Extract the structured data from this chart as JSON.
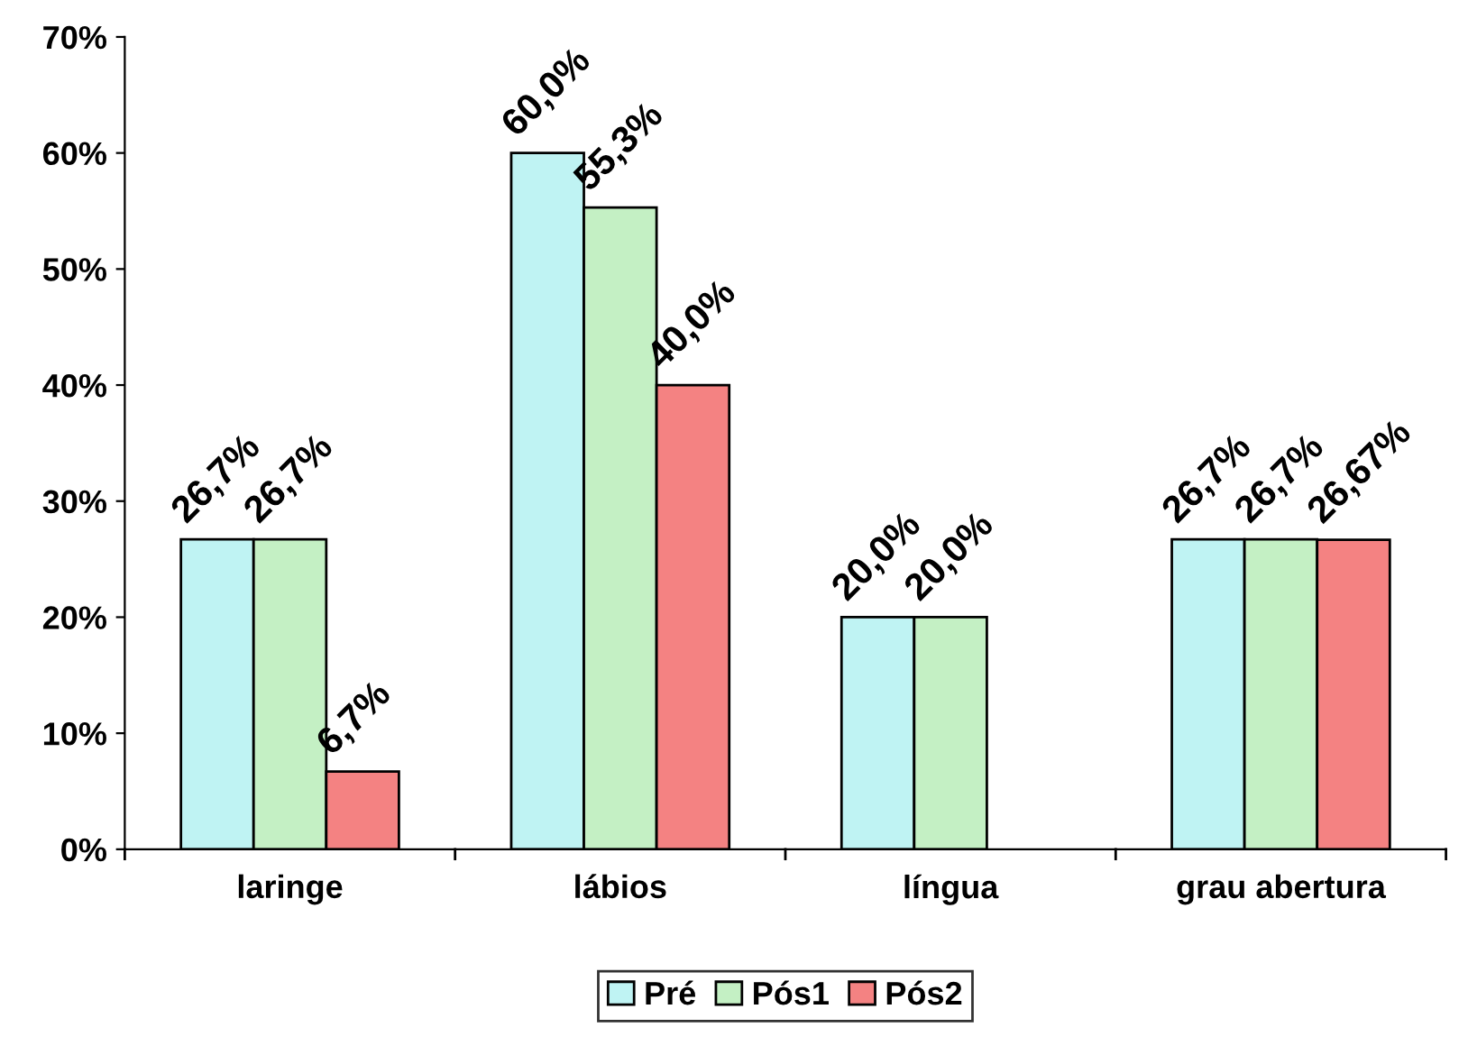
{
  "chart_data": {
    "type": "bar",
    "categories": [
      "laringe",
      "lábios",
      "língua",
      "grau abertura"
    ],
    "series": [
      {
        "name": "Pré",
        "color": "#bff3f3",
        "values": [
          26.7,
          60.0,
          20.0,
          26.7
        ],
        "value_labels": [
          "26,7%",
          "60,0%",
          "20,0%",
          "26,7%"
        ]
      },
      {
        "name": "Pós1",
        "color": "#c4f0c4",
        "values": [
          26.7,
          55.3,
          20.0,
          26.7
        ],
        "value_labels": [
          "26,7%",
          "55,3%",
          "20,0%",
          "26,7%"
        ]
      },
      {
        "name": "Pós2",
        "color": "#f48282",
        "values": [
          6.7,
          40.0,
          null,
          26.67
        ],
        "value_labels": [
          "6,7%",
          "40,0%",
          null,
          "26,67%"
        ]
      }
    ],
    "ylim": [
      0,
      70
    ],
    "yticks": [
      {
        "value": 0,
        "label": "0%"
      },
      {
        "value": 10,
        "label": "10%"
      },
      {
        "value": 20,
        "label": "20%"
      },
      {
        "value": 30,
        "label": "30%"
      },
      {
        "value": 40,
        "label": "40%"
      },
      {
        "value": 50,
        "label": "50%"
      },
      {
        "value": 60,
        "label": "60%"
      },
      {
        "value": 70,
        "label": "70%"
      }
    ],
    "grid": false,
    "legend": "bottom"
  }
}
